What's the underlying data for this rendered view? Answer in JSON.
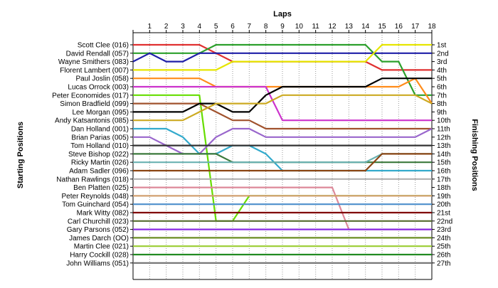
{
  "chart_data": {
    "type": "line",
    "title": "",
    "xlabel": "Laps",
    "ylabel_left": "Starting Positions",
    "ylabel_right": "Finishing Positions",
    "x": [
      0,
      1,
      2,
      3,
      4,
      5,
      6,
      7,
      8,
      9,
      10,
      11,
      12,
      13,
      14,
      15,
      16,
      17,
      18
    ],
    "xlim": [
      0,
      18
    ],
    "ylim": [
      1,
      27
    ],
    "y_inverted": true,
    "grid": {
      "vertical": true,
      "horizontal": false
    },
    "finishing_positions": [
      "1st",
      "2nd",
      "3rd",
      "4th",
      "5th",
      "6th",
      "7th",
      "8th",
      "9th",
      "10th",
      "11th",
      "12th",
      "13th",
      "14th",
      "15th",
      "16th",
      "17th",
      "18th",
      "19th",
      "20th",
      "21st",
      "22nd",
      "23rd",
      "24th",
      "25th",
      "26th",
      "27th"
    ],
    "series": [
      {
        "name": "Scott Clee (016)",
        "color": "#e03030",
        "values": [
          1,
          1,
          1,
          1,
          1,
          2,
          3,
          3,
          3,
          3,
          3,
          3,
          3,
          3,
          3,
          4,
          4,
          4,
          4
        ]
      },
      {
        "name": "David Rendall (057)",
        "color": "#2ca02c",
        "values": [
          2,
          2,
          2,
          2,
          2,
          1,
          1,
          1,
          1,
          1,
          1,
          1,
          1,
          1,
          1,
          3,
          3,
          7,
          7
        ]
      },
      {
        "name": "Wayne Smithers (083)",
        "color": "#1f1fa8",
        "values": [
          3,
          2,
          3,
          3,
          2,
          2,
          2,
          2,
          2,
          2,
          2,
          2,
          2,
          2,
          2,
          2,
          2,
          2,
          2
        ]
      },
      {
        "name": "Florent Lambert (007)",
        "color": "#e6e600",
        "values": [
          4,
          4,
          4,
          4,
          4,
          4,
          3,
          3,
          3,
          3,
          3,
          3,
          3,
          3,
          3,
          1,
          1,
          1,
          1
        ]
      },
      {
        "name": "Paul Joslin (058)",
        "color": "#ff8c1a",
        "values": [
          5,
          5,
          5,
          5,
          5,
          6,
          6,
          6,
          6,
          6,
          6,
          6,
          6,
          6,
          6,
          6,
          6,
          5,
          8
        ]
      },
      {
        "name": "Lucas Orrock (003)",
        "color": "#cc33cc",
        "values": [
          6,
          6,
          6,
          6,
          6,
          6,
          6,
          6,
          6,
          10,
          10,
          10,
          10,
          10,
          10,
          10,
          10,
          10,
          10
        ]
      },
      {
        "name": "Peter Economides (017)",
        "color": "#66dd00",
        "values": [
          7,
          7,
          7,
          7,
          7,
          22,
          22,
          19,
          19,
          19,
          19,
          19,
          19,
          19,
          19,
          19,
          19,
          19,
          19
        ]
      },
      {
        "name": "Simon Bradfield (099)",
        "color": "#a0522d",
        "values": [
          8,
          8,
          8,
          8,
          8,
          9,
          10,
          10,
          11,
          11,
          11,
          11,
          11,
          11,
          11,
          11,
          11,
          11,
          11
        ]
      },
      {
        "name": "Lee Morgan (095)",
        "color": "#000000",
        "values": [
          9,
          9,
          9,
          9,
          8,
          8,
          9,
          9,
          7,
          6,
          6,
          6,
          6,
          6,
          6,
          5,
          5,
          5,
          5
        ]
      },
      {
        "name": "Andy Katsantonis (085)",
        "color": "#ccaa22",
        "values": [
          10,
          10,
          10,
          10,
          9,
          8,
          8,
          8,
          8,
          7,
          7,
          7,
          7,
          7,
          7,
          7,
          7,
          7,
          8
        ]
      },
      {
        "name": "Dan Holland (001)",
        "color": "#33aacc",
        "values": [
          11,
          11,
          11,
          12,
          14,
          14,
          13,
          13,
          14,
          16,
          16,
          16,
          16,
          16,
          16,
          16,
          16,
          16,
          16
        ]
      },
      {
        "name": "Brian Parias (005)",
        "color": "#9966cc",
        "values": [
          12,
          12,
          13,
          14,
          14,
          12,
          11,
          11,
          12,
          12,
          12,
          12,
          12,
          12,
          12,
          12,
          12,
          12,
          11
        ]
      },
      {
        "name": "Tom Holland (010)",
        "color": "#333333",
        "values": [
          13,
          13,
          13,
          13,
          13,
          13,
          13,
          13,
          13,
          13,
          13,
          13,
          13,
          13,
          13,
          13,
          13,
          13,
          13
        ]
      },
      {
        "name": "Steve Bishop (022)",
        "color": "#3c7a3c",
        "values": [
          14,
          14,
          14,
          14,
          14,
          14,
          15,
          15,
          15,
          15,
          15,
          15,
          15,
          15,
          15,
          15,
          15,
          15,
          15
        ]
      },
      {
        "name": "Ricky Martin (026)",
        "color": "#6bb2b2",
        "values": [
          15,
          15,
          15,
          15,
          15,
          15,
          15,
          15,
          15,
          15,
          15,
          15,
          15,
          15,
          15,
          14,
          14,
          14,
          14
        ]
      },
      {
        "name": "Adam Sadler (096)",
        "color": "#8b4513",
        "values": [
          16,
          16,
          16,
          16,
          16,
          16,
          16,
          16,
          16,
          16,
          16,
          16,
          16,
          16,
          16,
          14,
          14,
          14,
          14
        ]
      },
      {
        "name": "Nathan Rawlings (018)",
        "color": "#b0b0b0",
        "values": [
          17,
          17,
          17,
          17,
          17,
          17,
          17,
          17,
          17,
          17,
          17,
          17,
          17,
          17,
          17,
          17,
          17,
          17,
          17
        ]
      },
      {
        "name": "Ben Platten (025)",
        "color": "#dd8899",
        "values": [
          18,
          18,
          18,
          18,
          18,
          18,
          18,
          18,
          18,
          18,
          18,
          18,
          18,
          23,
          23,
          23,
          23,
          23,
          23
        ]
      },
      {
        "name": "Peter Reynolds (048)",
        "color": "#d2a070",
        "values": [
          19,
          19,
          19,
          19,
          19,
          19,
          19,
          19,
          19,
          19,
          19,
          19,
          19,
          19,
          19,
          19,
          19,
          19,
          19
        ]
      },
      {
        "name": "Tom Guinchard (054)",
        "color": "#4d8fcc",
        "values": [
          20,
          20,
          20,
          20,
          20,
          20,
          20,
          20,
          20,
          20,
          20,
          20,
          20,
          20,
          20,
          20,
          20,
          20,
          20
        ]
      },
      {
        "name": "Mark Witty (082)",
        "color": "#800000",
        "values": [
          21,
          21,
          21,
          21,
          21,
          21,
          21,
          21,
          21,
          21,
          21,
          21,
          21,
          21,
          21,
          21,
          21,
          21,
          21
        ]
      },
      {
        "name": "Carl Churchill (023)",
        "color": "#556b2f",
        "values": [
          22,
          22,
          22,
          22,
          22,
          22,
          22,
          22,
          22,
          22,
          22,
          22,
          22,
          22,
          22,
          22,
          22,
          22,
          22
        ]
      },
      {
        "name": "Gary Parsons (052)",
        "color": "#8a2be2",
        "values": [
          23,
          23,
          23,
          23,
          23,
          23,
          23,
          23,
          23,
          23,
          23,
          23,
          23,
          23,
          23,
          23,
          23,
          23,
          23
        ]
      },
      {
        "name": "James Darch (OO)",
        "color": "#6b8e23",
        "values": [
          24,
          24,
          24,
          24,
          24,
          24,
          24,
          24,
          24,
          24,
          24,
          24,
          24,
          24,
          24,
          24,
          24,
          24,
          24
        ]
      },
      {
        "name": "Martin Clee (021)",
        "color": "#9acd32",
        "values": [
          25,
          25,
          25,
          25,
          25,
          25,
          25,
          25,
          25,
          25,
          25,
          25,
          25,
          25,
          25,
          25,
          25,
          25,
          25
        ]
      },
      {
        "name": "Harry Cockill (028)",
        "color": "#228b22",
        "values": [
          26,
          26,
          26,
          26,
          26,
          26,
          26,
          26,
          26,
          26,
          26,
          26,
          26,
          26,
          26,
          26,
          26,
          26,
          26
        ]
      },
      {
        "name": "John Williams (051)",
        "color": "#707070",
        "values": [
          27,
          27,
          27,
          27,
          27,
          27,
          27,
          27,
          27,
          27,
          27,
          27,
          27,
          27,
          27,
          27,
          27,
          27,
          27
        ]
      }
    ]
  }
}
